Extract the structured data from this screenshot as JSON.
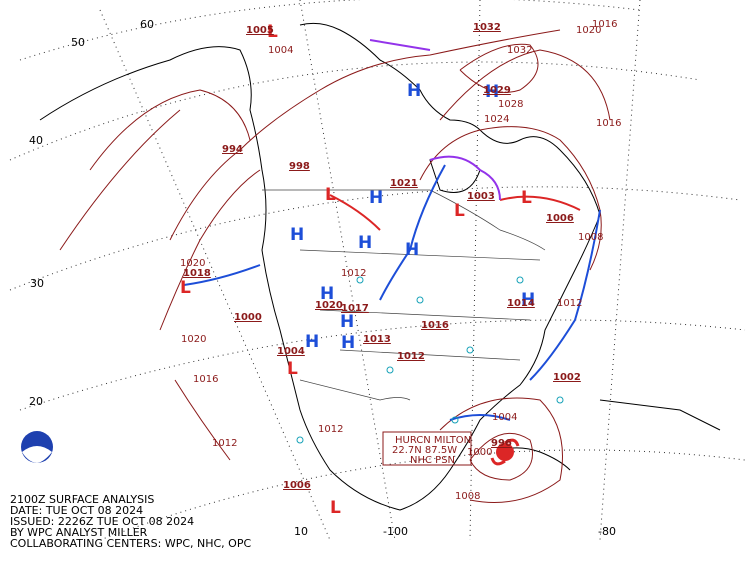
{
  "title_block": {
    "lines": [
      "2100Z SURFACE ANALYSIS",
      "DATE: TUE OCT 08 2024",
      "ISSUED: 2226Z TUE OCT 08 2024",
      "BY WPC ANALYST MILLER",
      "COLLABORATING CENTERS: WPC, NHC, OPC"
    ]
  },
  "hurricane": {
    "lines": [
      "HURCN MILTON",
      "22.7N 87.5W",
      "NHC PSN"
    ]
  },
  "grid_labels": [
    "60",
    "50",
    "40",
    "30",
    "20",
    "10",
    "-100",
    "-80"
  ],
  "highs": [
    "H",
    "H",
    "H",
    "H",
    "H",
    "H",
    "H",
    "H",
    "H",
    "H",
    "H"
  ],
  "lows": [
    "L",
    "L",
    "L",
    "L",
    "L",
    "L",
    "L"
  ],
  "center_pressures": [
    "1032",
    "1029",
    "1021",
    "1003",
    "1006",
    "998",
    "1018",
    "1000",
    "1004",
    "1013",
    "1012",
    "1016",
    "1020",
    "1017",
    "1002",
    "1006",
    "1005",
    "994",
    "1014",
    "996"
  ],
  "isobar_labels": [
    "1016",
    "1020",
    "1032",
    "1028",
    "1024",
    "1016",
    "1008",
    "1012",
    "1020",
    "1020",
    "1016",
    "1012",
    "1004",
    "1012",
    "1004",
    "1000",
    "1008",
    "1012"
  ]
}
